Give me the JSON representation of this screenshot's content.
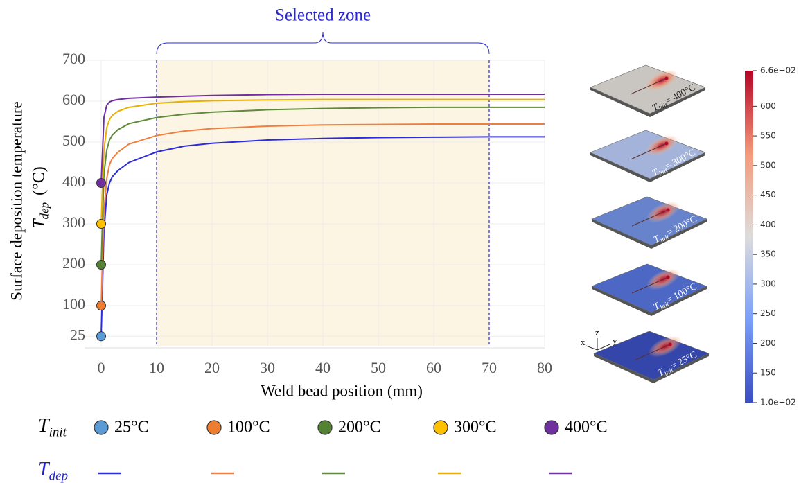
{
  "chart_data": {
    "type": "line",
    "x_label": "Weld bead position (mm)",
    "y_label": {
      "text": "Surface deposition temperature",
      "symbol": "T",
      "subscript": "dep",
      "unit": "(°C)"
    },
    "xlim": [
      -3,
      80
    ],
    "xticks": [
      0,
      10,
      20,
      30,
      40,
      50,
      60,
      70,
      80
    ],
    "ylim": [
      0,
      700
    ],
    "yticks": [
      25,
      100,
      200,
      300,
      400,
      500,
      600,
      700
    ],
    "grid": true,
    "highlight": {
      "label": "Selected zone",
      "range": [
        10,
        70
      ],
      "color": "#fdf5e3",
      "line_color": "#2a2ad0"
    },
    "x": [
      0,
      0.5,
      1,
      1.5,
      2,
      3,
      5,
      10,
      15,
      20,
      30,
      40,
      50,
      60,
      70,
      80
    ],
    "series": [
      {
        "name": "25°C",
        "color": "#2b2bdb",
        "marker_color": "#5b9bd5",
        "values": [
          25,
          280,
          370,
          400,
          415,
          430,
          450,
          476,
          490,
          497,
          505,
          509,
          511,
          512,
          513,
          513
        ]
      },
      {
        "name": "100°C",
        "color": "#ef7f3f",
        "marker_color": "#ed7d31",
        "values": [
          100,
          330,
          410,
          445,
          460,
          475,
          495,
          516,
          527,
          533,
          539,
          542,
          543,
          544,
          544,
          544
        ]
      },
      {
        "name": "200°C",
        "color": "#5e8a3a",
        "marker_color": "#548235",
        "values": [
          200,
          420,
          480,
          505,
          517,
          530,
          545,
          560,
          568,
          573,
          579,
          582,
          584,
          585,
          585,
          585
        ]
      },
      {
        "name": "300°C",
        "color": "#e8b000",
        "marker_color": "#ffc000",
        "values": [
          300,
          480,
          535,
          555,
          565,
          575,
          585,
          595,
          599,
          601,
          603,
          604,
          604,
          604,
          604,
          604
        ]
      },
      {
        "name": "400°C",
        "color": "#7030a0",
        "marker_color": "#7030a0",
        "values": [
          400,
          560,
          590,
          598,
          601,
          604,
          607,
          610,
          612,
          614,
          616,
          617,
          617,
          617,
          617,
          617
        ]
      }
    ],
    "legend": {
      "marker_row": {
        "symbol": "T",
        "subscript": "init"
      },
      "line_row": {
        "symbol": "T",
        "subscript": "dep",
        "color": "#2222cc"
      }
    },
    "plates": [
      {
        "symbol": "T",
        "subscript": "init",
        "text": "= 400°C",
        "color": "#c9c5c1"
      },
      {
        "symbol": "T",
        "subscript": "init",
        "text": "= 300°C",
        "color": "#a3b3d9"
      },
      {
        "symbol": "T",
        "subscript": "init",
        "text": "= 200°C",
        "color": "#6783cc"
      },
      {
        "symbol": "T",
        "subscript": "init",
        "text": "= 100°C",
        "color": "#4c68c4"
      },
      {
        "symbol": "T",
        "subscript": "init",
        "text": "= 25°C",
        "color": "#3446aa"
      }
    ],
    "triad": {
      "x": "x",
      "y": "y",
      "z": "z"
    },
    "colorbar": {
      "range": [
        100,
        660
      ],
      "ticks": [
        {
          "value": 660,
          "label": "6.6e+02"
        },
        600,
        550,
        500,
        450,
        400,
        350,
        300,
        250,
        200,
        150,
        {
          "value": 100,
          "label": "1.0e+02"
        }
      ]
    }
  }
}
